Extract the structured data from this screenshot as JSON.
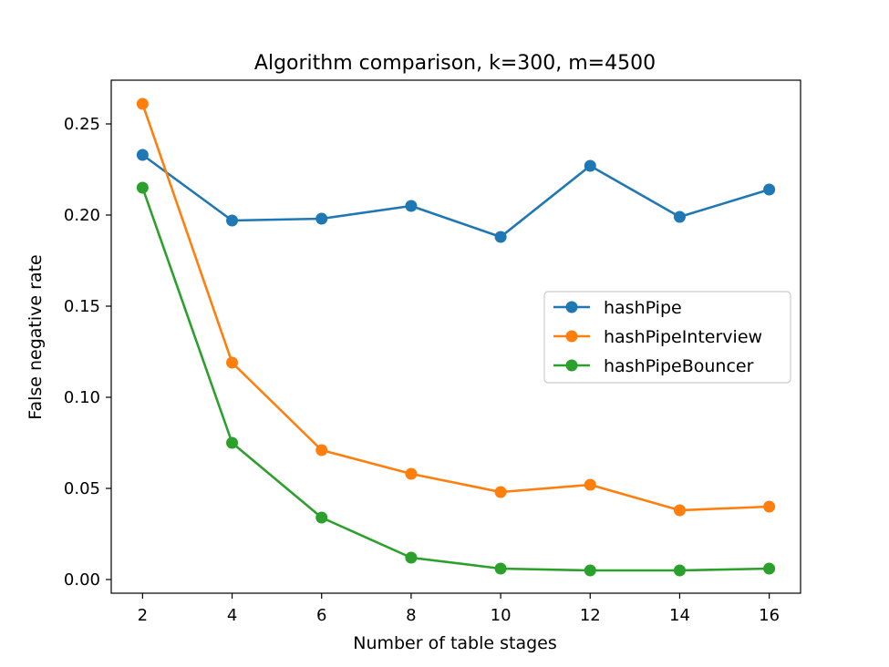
{
  "chart_data": {
    "type": "line",
    "title": "Algorithm comparison, k=300, m=4500",
    "xlabel": "Number of table stages",
    "ylabel": "False negative rate",
    "x": [
      2,
      4,
      6,
      8,
      10,
      12,
      14,
      16
    ],
    "xticks": [
      "2",
      "4",
      "6",
      "8",
      "10",
      "12",
      "14",
      "16"
    ],
    "yticks": [
      "0.00",
      "0.05",
      "0.10",
      "0.15",
      "0.20",
      "0.25"
    ],
    "xlim": [
      1.3,
      16.7
    ],
    "ylim": [
      -0.0075,
      0.274
    ],
    "grid": false,
    "legend_position": "center-right",
    "series": [
      {
        "name": "hashPipe",
        "color": "#1f77b4",
        "values": [
          0.233,
          0.197,
          0.198,
          0.205,
          0.188,
          0.227,
          0.199,
          0.214
        ]
      },
      {
        "name": "hashPipeInterview",
        "color": "#ff7f0e",
        "values": [
          0.261,
          0.119,
          0.071,
          0.058,
          0.048,
          0.052,
          0.038,
          0.04
        ]
      },
      {
        "name": "hashPipeBouncer",
        "color": "#2ca02c",
        "values": [
          0.215,
          0.075,
          0.034,
          0.012,
          0.006,
          0.005,
          0.005,
          0.006
        ]
      }
    ]
  }
}
